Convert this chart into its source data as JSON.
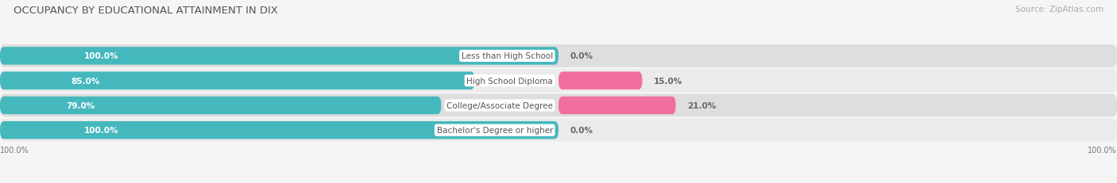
{
  "title": "OCCUPANCY BY EDUCATIONAL ATTAINMENT IN DIX",
  "source": "Source: ZipAtlas.com",
  "categories": [
    "Less than High School",
    "High School Diploma",
    "College/Associate Degree",
    "Bachelor's Degree or higher"
  ],
  "owner_values": [
    100.0,
    85.0,
    79.0,
    100.0
  ],
  "renter_values": [
    0.0,
    15.0,
    21.0,
    0.0
  ],
  "owner_color": "#45b8be",
  "renter_color_0": "#f7a8c4",
  "renter_color_1": "#f06fa0",
  "renter_color_2": "#f06fa0",
  "renter_color_3": "#f7a8c4",
  "renter_colors": [
    "#f7a8c4",
    "#f06fa0",
    "#f06fa0",
    "#f7a8c4"
  ],
  "row_bg_light": "#ebebeb",
  "row_bg_dark": "#dedede",
  "label_color": "#555555",
  "value_color_white": "#ffffff",
  "value_color_dark": "#666666",
  "title_color": "#555555",
  "source_color": "#aaaaaa",
  "title_fontsize": 9.5,
  "source_fontsize": 7.5,
  "label_fontsize": 7.5,
  "value_fontsize": 7.5,
  "legend_fontsize": 8,
  "axis_label_left": "100.0%",
  "axis_label_right": "100.0%",
  "figsize": [
    14.06,
    2.32
  ],
  "dpi": 100
}
